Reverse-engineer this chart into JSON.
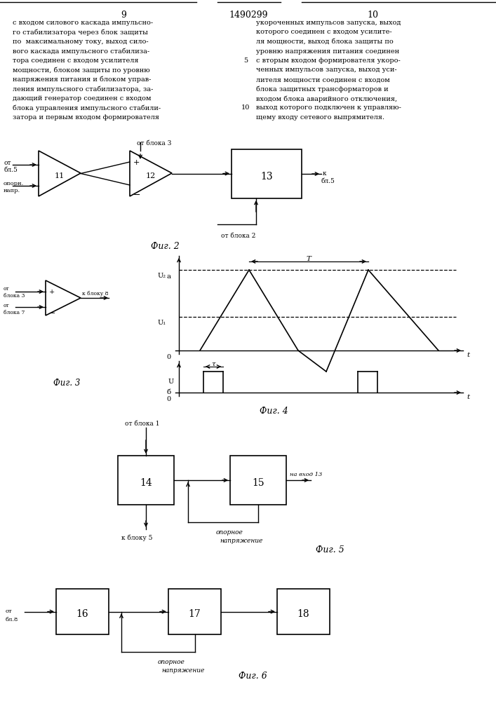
{
  "page_num_left": "9",
  "page_num_right": "10",
  "patent_num": "1490299",
  "text_left": [
    "с входом силового каскада импульсно-",
    "го стабилизатора через блок защиты",
    "по  максимальному току, выход сило-",
    "вого каскада импульсного стабилиза-",
    "тора соединен с входом усилителя",
    "мощности, блоком защиты по уровню",
    "напряжения питания и блоком управ-",
    "ления импульсного стабилизатора, за-",
    "дающий генератор соединен с входом",
    "блока управления импульсного стабили-",
    "затора и первым входом формирователя"
  ],
  "text_right": [
    "укороченных импульсов запуска, выход",
    "которого соединен с входом усилите-",
    "ля мощности, выход блока защиты по",
    "уровню напряжения питания соединен",
    "с вторым входом формирователя укоро-",
    "ченных импульсов запуска, выход уси-",
    "лителя мощности соединен с входом",
    "блока защитных трансформаторов и",
    "входом блока аварийного отключения,",
    "выход которого подключен к управляю-",
    "щему входу сетевого выпрямителя."
  ],
  "fig2_label": "Фиг. 2",
  "fig3_label": "Фиг. 3",
  "fig4_label": "Фиг. 4",
  "fig5_label": "Фиг. 5",
  "fig6_label": "Фиг. 6"
}
